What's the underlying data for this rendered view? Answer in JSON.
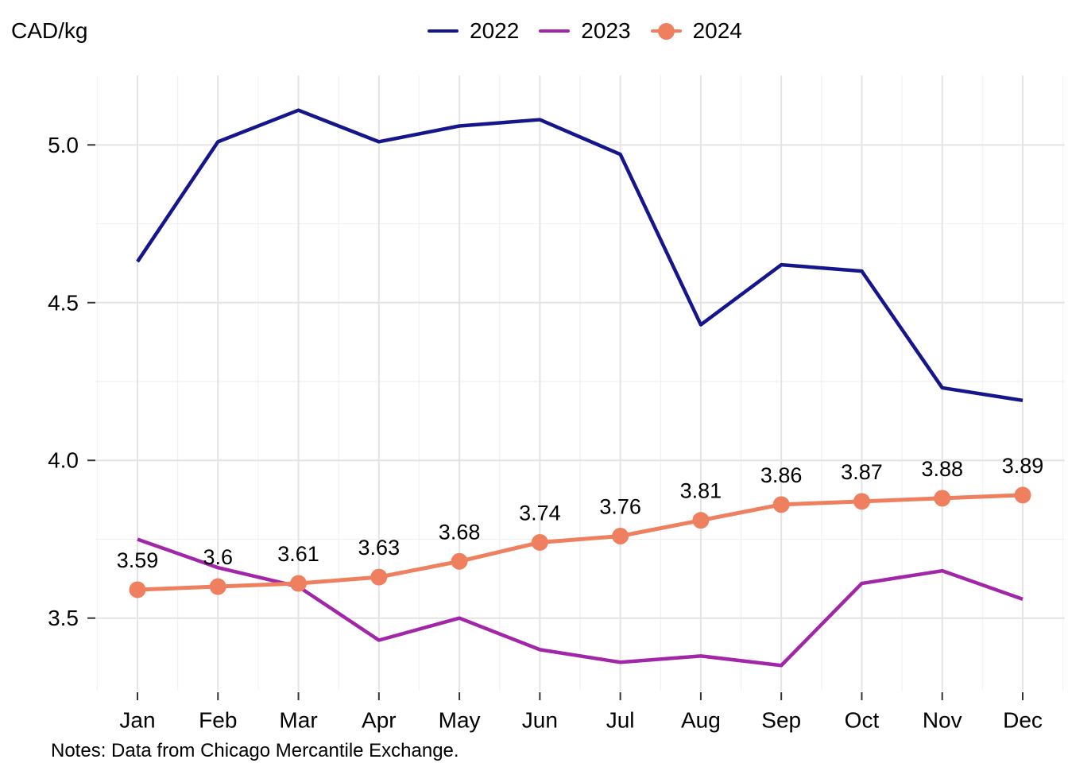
{
  "title": "CAD/kg",
  "notes": "Notes: Data from Chicago Mercantile Exchange.",
  "legend": {
    "position": "top-center",
    "items": [
      {
        "label": "2022",
        "color": "#16168C",
        "marker": "line"
      },
      {
        "label": "2023",
        "color": "#A226A8",
        "marker": "line"
      },
      {
        "label": "2024",
        "color": "#EF805F",
        "marker": "line-dot"
      }
    ]
  },
  "chart_data": {
    "type": "line",
    "title": "",
    "ylabel": "CAD/kg",
    "xlabel": "",
    "x": [
      "Jan",
      "Feb",
      "Mar",
      "Apr",
      "May",
      "Jun",
      "Jul",
      "Aug",
      "Sep",
      "Oct",
      "Nov",
      "Dec"
    ],
    "series": [
      {
        "name": "2022",
        "color": "#16168C",
        "values": [
          4.63,
          5.01,
          5.11,
          5.01,
          5.06,
          5.08,
          4.97,
          4.43,
          4.62,
          4.6,
          4.23,
          4.19
        ],
        "markers": false,
        "data_labels": null
      },
      {
        "name": "2023",
        "color": "#A226A8",
        "values": [
          3.75,
          3.66,
          3.6,
          3.43,
          3.5,
          3.4,
          3.36,
          3.38,
          3.35,
          3.61,
          3.65,
          3.56
        ],
        "markers": false,
        "data_labels": null
      },
      {
        "name": "2024",
        "color": "#EF805F",
        "values": [
          3.59,
          3.6,
          3.61,
          3.63,
          3.68,
          3.74,
          3.76,
          3.81,
          3.86,
          3.87,
          3.88,
          3.89
        ],
        "markers": true,
        "data_labels": [
          "3.59",
          "3.6",
          "3.61",
          "3.63",
          "3.68",
          "3.74",
          "3.76",
          "3.81",
          "3.86",
          "3.87",
          "3.88",
          "3.89"
        ]
      }
    ],
    "yticks": [
      3.5,
      4.0,
      4.5,
      5.0
    ],
    "ytick_labels": [
      "3.5",
      "4.0",
      "4.5",
      "5.0"
    ],
    "ylim": [
      3.27,
      5.22
    ],
    "grid": true,
    "grid_color_major": "#E4E4E4",
    "grid_color_minor": "#F1F1F1",
    "tick_color": "#333333",
    "text_color": "#000000",
    "legend_position": "top"
  }
}
